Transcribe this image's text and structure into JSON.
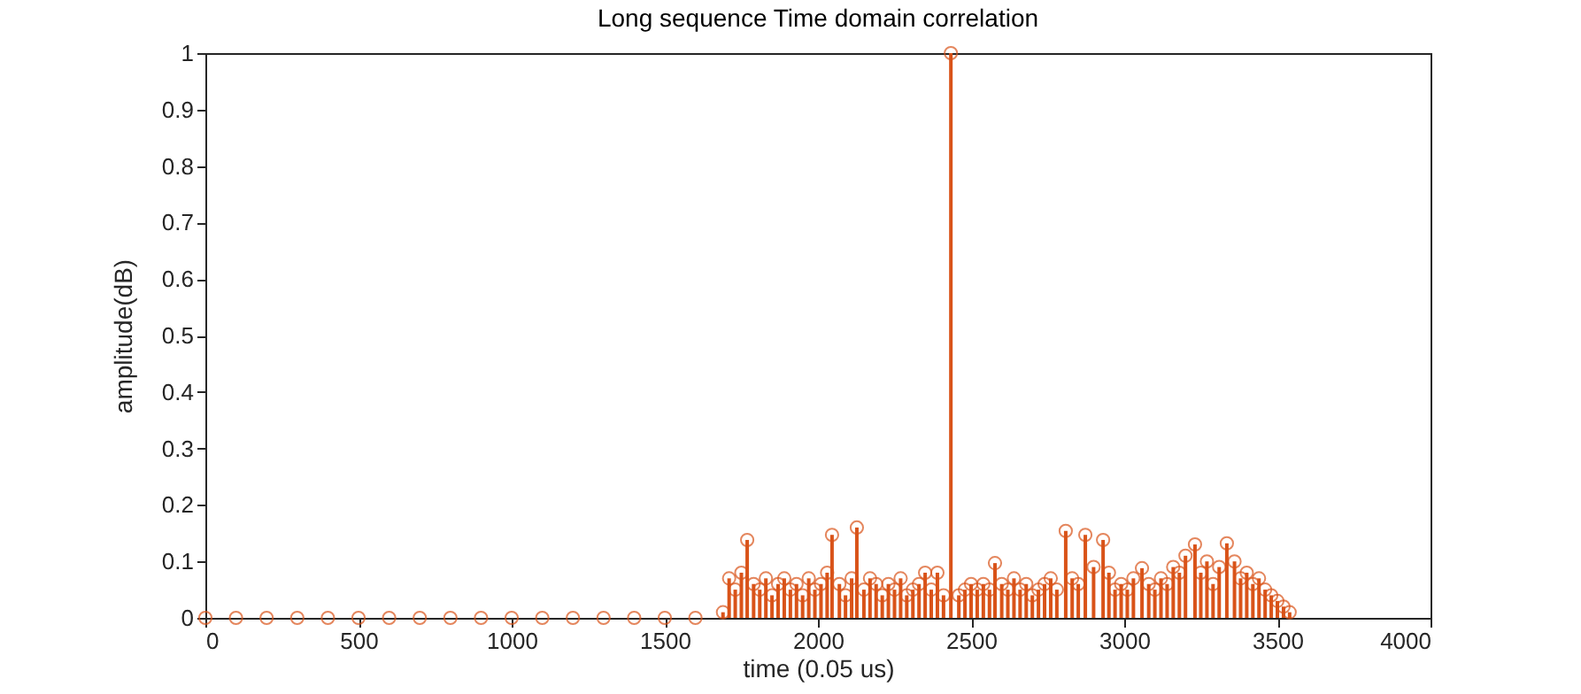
{
  "chart_data": {
    "type": "lollipop",
    "title": "Long sequence Time domain correlation",
    "xlabel": "time (0.05 us)",
    "ylabel": "amplitude(dB)",
    "x": [
      0,
      100,
      200,
      300,
      400,
      500,
      600,
      700,
      800,
      900,
      1000,
      1100,
      1200,
      1300,
      1400,
      1500,
      1600,
      1690,
      1710,
      1730,
      1750,
      1769,
      1790,
      1810,
      1830,
      1850,
      1870,
      1890,
      1910,
      1930,
      1950,
      1970,
      1990,
      2010,
      2030,
      2046,
      2070,
      2090,
      2110,
      2127,
      2150,
      2170,
      2190,
      2210,
      2230,
      2250,
      2270,
      2290,
      2310,
      2330,
      2350,
      2370,
      2390,
      2410,
      2434,
      2460,
      2480,
      2500,
      2520,
      2540,
      2560,
      2578,
      2600,
      2620,
      2640,
      2660,
      2680,
      2700,
      2720,
      2740,
      2760,
      2780,
      2809,
      2830,
      2850,
      2873,
      2900,
      2931,
      2950,
      2970,
      2990,
      3010,
      3030,
      3058,
      3080,
      3100,
      3120,
      3140,
      3160,
      3180,
      3200,
      3231,
      3250,
      3270,
      3290,
      3310,
      3335,
      3360,
      3380,
      3400,
      3420,
      3440,
      3460,
      3480,
      3500,
      3520,
      3540
    ],
    "series": [
      {
        "color": "#d95319",
        "values": [
          0,
          0,
          0,
          0,
          0,
          0,
          0,
          0,
          0,
          0,
          0,
          0,
          0,
          0,
          0,
          0,
          0,
          0.01,
          0.07,
          0.05,
          0.08,
          0.138,
          0.06,
          0.05,
          0.07,
          0.04,
          0.06,
          0.07,
          0.05,
          0.06,
          0.04,
          0.07,
          0.05,
          0.06,
          0.08,
          0.147,
          0.06,
          0.04,
          0.07,
          0.16,
          0.05,
          0.07,
          0.06,
          0.04,
          0.06,
          0.05,
          0.07,
          0.04,
          0.05,
          0.06,
          0.08,
          0.05,
          0.08,
          0.04,
          1,
          0.04,
          0.05,
          0.06,
          0.05,
          0.06,
          0.05,
          0.097,
          0.06,
          0.05,
          0.07,
          0.05,
          0.06,
          0.04,
          0.05,
          0.06,
          0.07,
          0.05,
          0.154,
          0.07,
          0.06,
          0.147,
          0.09,
          0.138,
          0.08,
          0.05,
          0.06,
          0.05,
          0.07,
          0.088,
          0.06,
          0.05,
          0.07,
          0.06,
          0.09,
          0.08,
          0.11,
          0.13,
          0.08,
          0.1,
          0.06,
          0.09,
          0.132,
          0.1,
          0.07,
          0.08,
          0.06,
          0.07,
          0.05,
          0.04,
          0.03,
          0.02,
          0.01
        ]
      }
    ],
    "xlim": [
      0,
      4000
    ],
    "xticks": [
      0,
      500,
      1000,
      1500,
      2000,
      2500,
      3000,
      3500,
      4000
    ],
    "ylim": [
      0,
      1
    ],
    "yticks": [
      0,
      0.1,
      0.2,
      0.3,
      0.4,
      0.5,
      0.6,
      0.7,
      0.8,
      0.9,
      1
    ],
    "marker": "circle"
  }
}
